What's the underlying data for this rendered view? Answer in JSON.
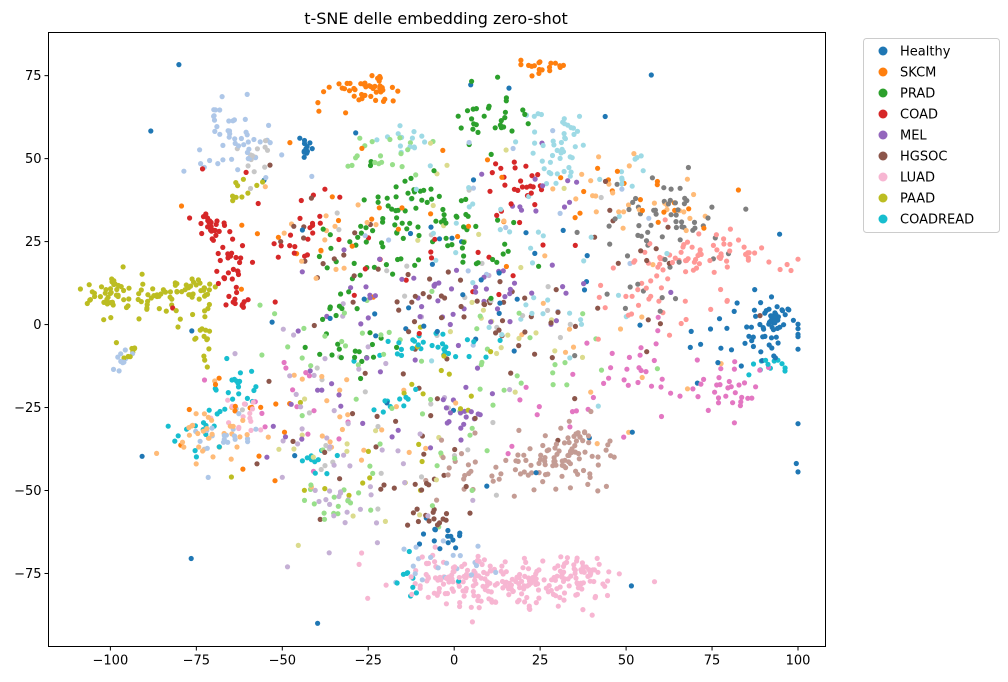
{
  "chart_data": {
    "type": "scatter",
    "title": "t-SNE delle embedding zero-shot",
    "xlabel": "",
    "ylabel": "",
    "xlim": [
      -118,
      108
    ],
    "ylim": [
      -97,
      88
    ],
    "x_ticks": [
      -100,
      -75,
      -50,
      -25,
      0,
      25,
      50,
      75,
      100
    ],
    "y_ticks": [
      -75,
      -50,
      -25,
      0,
      25,
      50,
      75
    ],
    "x_tick_labels": [
      "−100",
      "−75",
      "−50",
      "−25",
      "0",
      "25",
      "50",
      "75",
      "100"
    ],
    "y_tick_labels": [
      "−75",
      "−50",
      "−25",
      "0",
      "25",
      "50",
      "75"
    ],
    "grid": false,
    "legend_position": "outside-upper-right",
    "series": [
      {
        "name": "Healthy",
        "color": "#1f77b4",
        "clusters": [
          [
            93,
            2,
            3,
            3,
            40
          ],
          [
            -43,
            53,
            2,
            2,
            12
          ],
          [
            85,
            -5,
            10,
            4,
            30
          ],
          [
            -3,
            -62,
            4,
            3,
            15
          ],
          [
            20,
            5,
            50,
            40,
            60
          ]
        ]
      },
      {
        "name": "SKCM",
        "color": "#ff7f0e",
        "clusters": [
          [
            -28,
            70,
            6,
            2,
            35
          ],
          [
            -22,
            73,
            3,
            1.5,
            10
          ],
          [
            26,
            78,
            4,
            1,
            18
          ],
          [
            -20,
            30,
            25,
            12,
            25
          ],
          [
            50,
            38,
            12,
            6,
            20
          ],
          [
            -65,
            -30,
            10,
            8,
            15
          ]
        ]
      },
      {
        "name": "PRAD",
        "color": "#2ca02c",
        "clusters": [
          [
            -15,
            35,
            8,
            6,
            50
          ],
          [
            -25,
            20,
            8,
            5,
            25
          ],
          [
            10,
            62,
            5,
            5,
            30
          ],
          [
            5,
            28,
            8,
            6,
            25
          ],
          [
            -30,
            -7,
            6,
            3,
            18
          ],
          [
            -35,
            5,
            6,
            4,
            10
          ]
        ]
      },
      {
        "name": "COAD",
        "color": "#d62728",
        "clusters": [
          [
            -70,
            30,
            2,
            3,
            25
          ],
          [
            -65,
            18,
            2.5,
            4,
            25
          ],
          [
            -63,
            7,
            2,
            2,
            12
          ],
          [
            -45,
            28,
            4,
            5,
            20
          ],
          [
            18,
            43,
            5,
            4,
            25
          ],
          [
            -20,
            28,
            25,
            15,
            25
          ]
        ]
      },
      {
        "name": "MEL",
        "color": "#9467bd",
        "clusters": [
          [
            -15,
            10,
            15,
            6,
            25
          ],
          [
            15,
            10,
            15,
            6,
            25
          ],
          [
            -25,
            -20,
            20,
            10,
            20
          ],
          [
            0,
            -28,
            6,
            4,
            18
          ],
          [
            25,
            40,
            10,
            5,
            12
          ]
        ]
      },
      {
        "name": "HGSOC",
        "color": "#8c564b",
        "clusters": [
          [
            -5,
            5,
            20,
            6,
            35
          ],
          [
            30,
            -10,
            20,
            15,
            20
          ],
          [
            -30,
            -30,
            15,
            15,
            20
          ],
          [
            -5,
            -58,
            4,
            2,
            15
          ],
          [
            -8,
            -48,
            5,
            2,
            8
          ],
          [
            -40,
            28,
            10,
            8,
            12
          ],
          [
            50,
            25,
            10,
            8,
            10
          ]
        ]
      },
      {
        "name": "LUAD",
        "color": "#f7b6d2",
        "clusters": [
          [
            15,
            -78,
            15,
            4,
            200
          ],
          [
            -5,
            -75,
            5,
            4,
            20
          ],
          [
            38,
            -74,
            4,
            2,
            30
          ],
          [
            -60,
            -28,
            4,
            3,
            15
          ]
        ]
      },
      {
        "name": "PAAD",
        "color": "#bcbd22",
        "clusters": [
          [
            -100,
            8,
            4,
            3,
            40
          ],
          [
            -85,
            8,
            6,
            3,
            40
          ],
          [
            -75,
            10,
            4,
            2,
            25
          ],
          [
            -73,
            -3,
            2,
            4,
            15
          ],
          [
            -95,
            -8,
            1.5,
            2,
            8
          ],
          [
            -60,
            40,
            3,
            2,
            10
          ],
          [
            -30,
            -40,
            15,
            10,
            12
          ],
          [
            -5,
            -15,
            10,
            6,
            12
          ]
        ]
      },
      {
        "name": "COADREAD",
        "color": "#17becf",
        "clusters": [
          [
            -65,
            -18,
            4,
            4,
            20
          ],
          [
            -75,
            -30,
            4,
            4,
            15
          ],
          [
            -8,
            -7,
            8,
            2,
            30
          ],
          [
            90,
            -12,
            4,
            1.5,
            12
          ],
          [
            -10,
            -75,
            6,
            3,
            10
          ],
          [
            -38,
            -42,
            5,
            3,
            10
          ],
          [
            -15,
            -22,
            5,
            3,
            10
          ]
        ]
      }
    ],
    "extra_colors": [
      {
        "color": "#aec7e8",
        "clusters": [
          [
            -62,
            55,
            8,
            5,
            40
          ],
          [
            -67,
            62,
            3,
            2,
            10
          ],
          [
            -68,
            -35,
            6,
            5,
            20
          ],
          [
            -97,
            -10,
            2,
            1.5,
            10
          ],
          [
            -5,
            -72,
            8,
            3,
            20
          ],
          [
            20,
            28,
            25,
            15,
            15
          ]
        ]
      },
      {
        "color": "#ffbb78",
        "clusters": [
          [
            -70,
            -32,
            6,
            5,
            35
          ],
          [
            -35,
            -30,
            10,
            10,
            20
          ],
          [
            50,
            37,
            12,
            6,
            30
          ],
          [
            -40,
            28,
            8,
            6,
            15
          ],
          [
            30,
            -5,
            20,
            15,
            15
          ]
        ]
      },
      {
        "color": "#98df8a",
        "clusters": [
          [
            -20,
            52,
            8,
            4,
            20
          ],
          [
            10,
            -10,
            20,
            10,
            25
          ],
          [
            -30,
            -10,
            15,
            10,
            20
          ],
          [
            0,
            -40,
            15,
            10,
            15
          ],
          [
            -35,
            -53,
            5,
            3,
            15
          ]
        ]
      },
      {
        "color": "#ff9896",
        "clusters": [
          [
            75,
            20,
            10,
            3,
            60
          ],
          [
            60,
            5,
            10,
            5,
            20
          ],
          [
            55,
            15,
            5,
            5,
            15
          ]
        ]
      },
      {
        "color": "#c5b0d5",
        "clusters": [
          [
            -30,
            -50,
            10,
            5,
            20
          ],
          [
            -20,
            -30,
            20,
            20,
            20
          ],
          [
            -40,
            -20,
            10,
            10,
            15
          ]
        ]
      },
      {
        "color": "#c49c94",
        "clusters": [
          [
            27,
            -42,
            10,
            4,
            80
          ],
          [
            35,
            -35,
            5,
            4,
            20
          ],
          [
            0,
            -45,
            10,
            5,
            15
          ]
        ]
      },
      {
        "color": "#e377c2",
        "clusters": [
          [
            55,
            -15,
            10,
            6,
            30
          ],
          [
            80,
            -18,
            6,
            4,
            30
          ],
          [
            -45,
            -25,
            10,
            8,
            15
          ],
          [
            25,
            -30,
            10,
            5,
            10
          ]
        ]
      },
      {
        "color": "#7f7f7f",
        "clusters": [
          [
            65,
            30,
            10,
            6,
            40
          ],
          [
            55,
            15,
            10,
            10,
            15
          ],
          [
            60,
            40,
            5,
            3,
            10
          ]
        ]
      },
      {
        "color": "#c7c7c7",
        "clusters": [
          [
            -60,
            50,
            3,
            5,
            15
          ],
          [
            -30,
            -30,
            20,
            15,
            20
          ],
          [
            0,
            10,
            20,
            20,
            20
          ]
        ]
      },
      {
        "color": "#dbdb8d",
        "clusters": [
          [
            -30,
            -40,
            15,
            10,
            15
          ],
          [
            20,
            -5,
            15,
            10,
            15
          ],
          [
            5,
            40,
            15,
            10,
            10
          ]
        ]
      },
      {
        "color": "#9edae5",
        "clusters": [
          [
            32,
            55,
            6,
            5,
            45
          ],
          [
            -15,
            55,
            5,
            3,
            15
          ],
          [
            15,
            30,
            20,
            15,
            25
          ],
          [
            50,
            45,
            5,
            3,
            10
          ],
          [
            30,
            0,
            15,
            10,
            15
          ]
        ]
      }
    ]
  }
}
